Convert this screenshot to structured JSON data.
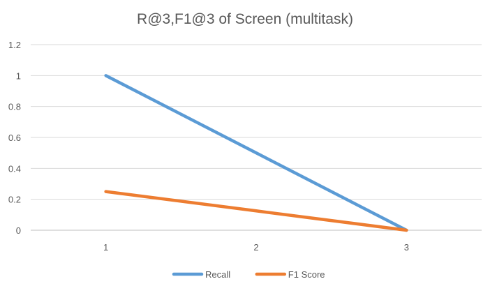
{
  "chart_data": {
    "type": "line",
    "title": "R@3,F1@3 of Screen (multitask)",
    "xlabel": "",
    "ylabel": "",
    "categories": [
      "1",
      "2",
      "3"
    ],
    "ylim": [
      0,
      1.2
    ],
    "yticks": [
      "0",
      "0.2",
      "0.4",
      "0.6",
      "0.8",
      "1",
      "1.2"
    ],
    "ytick_values": [
      0,
      0.2,
      0.4,
      0.6,
      0.8,
      1.0,
      1.2
    ],
    "grid": true,
    "legend_position": "bottom",
    "series": [
      {
        "name": "Recall",
        "color": "#5b9bd5",
        "values": [
          1.0,
          0.5,
          0.0
        ]
      },
      {
        "name": "F1 Score",
        "color": "#ed7d31",
        "values": [
          0.25,
          0.125,
          0.0
        ]
      }
    ]
  }
}
